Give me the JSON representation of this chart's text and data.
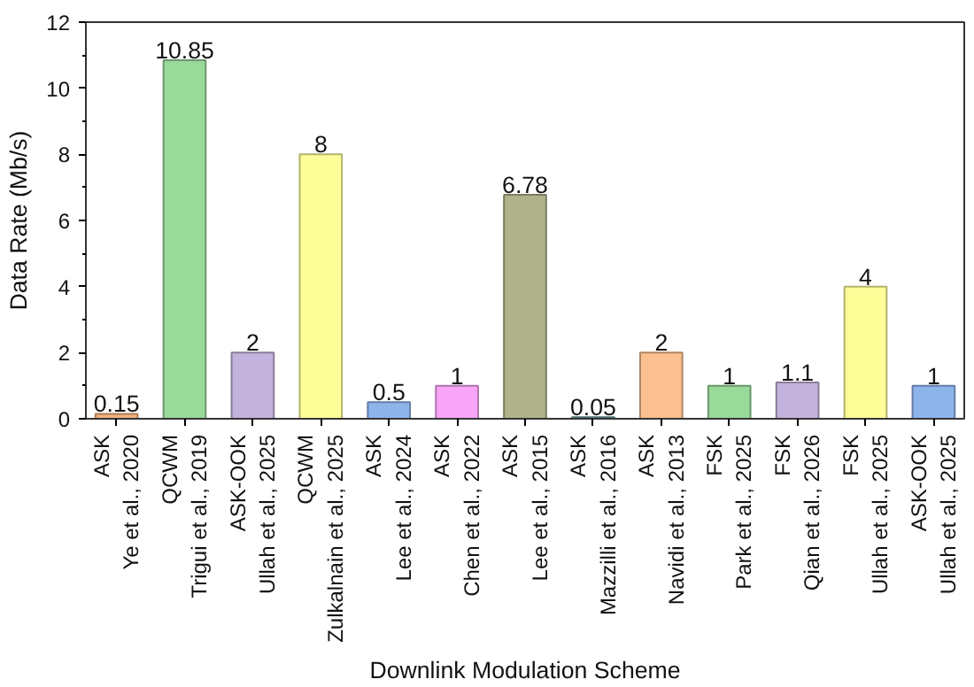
{
  "chart_data": {
    "type": "bar",
    "xlabel": "Downlink Modulation Scheme",
    "ylabel": "Data Rate (Mb/s)",
    "categories": [
      "ASK\nYe et al., 2020",
      "QCWM\nTrigui et al., 2019",
      "ASK-OOK\nUllah et al., 2025",
      "QCWM\nZulkalnain et al., 2025",
      "ASK\nLee et al., 2024",
      "ASK\nChen et al., 2022",
      "ASK\nLee et al., 2015",
      "ASK\nMazzilli et al., 2016",
      "ASK\nNavidi et al., 2013",
      "FSK\nPark et al., 2025",
      "FSK\nQian et al., 2026",
      "FSK\nUllah et al., 2025",
      "ASK-OOK\nUllah et al., 2025"
    ],
    "values": [
      0.15,
      10.85,
      2,
      8,
      0.5,
      1,
      6.78,
      0.05,
      2,
      1,
      1.1,
      4,
      1
    ],
    "colors": [
      "#f2b27c",
      "#99d99a",
      "#c3b3dc",
      "#ffff99",
      "#8eb4ec",
      "#f9a6f9",
      "#b0b38a",
      "#6fa5a0",
      "#fac090",
      "#99d99a",
      "#c3b3dc",
      "#ffff99",
      "#8eb4ec"
    ],
    "ylim": [
      0,
      12
    ],
    "yticks": [
      0,
      2,
      4,
      6,
      8,
      10,
      12
    ],
    "data_labels": true,
    "grid": false
  }
}
